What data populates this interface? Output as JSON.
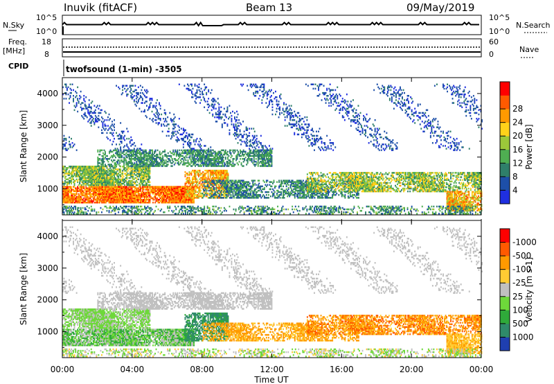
{
  "header": {
    "station": "Inuvik (fitACF)",
    "beam": "Beam 13",
    "date": "09/May/2019"
  },
  "top_panels": {
    "nsky_label": "N.Sky",
    "nsky_ticks": [
      "10^5",
      "10^0"
    ],
    "nsearch_label": "N.Search",
    "nsearch_ticks": [
      "10^5",
      "10^0"
    ],
    "freq_label": "Freq.",
    "freq_unit": "[MHz]",
    "freq_ticks": [
      "18",
      "8"
    ],
    "nave_label": "Nave",
    "nave_ticks": [
      "60",
      "0"
    ],
    "cpid_label": "CPID",
    "cpid_value": "twofsound (1-min) -3505"
  },
  "chart_data": [
    {
      "type": "heatmap",
      "quantity": "Power",
      "ylabel": "Slant Range [km]",
      "ylim": [
        180,
        4500
      ],
      "yticks": [
        1000,
        2000,
        3000,
        4000
      ],
      "xlim": [
        0,
        24
      ],
      "colorbar": {
        "label": "Power [dB]",
        "ticks": [
          "4",
          "8",
          "12",
          "16",
          "20",
          "24",
          "28"
        ],
        "colors": [
          "#1f2fe0",
          "#1d4fa8",
          "#2f7f6a",
          "#4fae52",
          "#9cc83a",
          "#ffd21a",
          "#ff9a00",
          "#ff5a00",
          "#ff0000"
        ]
      }
    },
    {
      "type": "heatmap",
      "quantity": "Velocity",
      "xlabel": "Time UT",
      "ylabel": "Slant Range [km]",
      "ylim": [
        180,
        4500
      ],
      "yticks": [
        1000,
        2000,
        3000,
        4000
      ],
      "xlim": [
        0,
        24
      ],
      "colorbar": {
        "label": "Velocity  [m s-1]",
        "ticks": [
          "1000",
          "500",
          "100",
          "25",
          "-25",
          "-100",
          "-500",
          "-1000"
        ],
        "colors": [
          "#1f3fb0",
          "#2f8a6a",
          "#2faa3a",
          "#6ed83a",
          "#c0c0c0",
          "#ffcc33",
          "#ff9a00",
          "#ff5a00",
          "#ff0000"
        ]
      }
    }
  ],
  "x_axis": {
    "ticks": [
      "00:00",
      "04:00",
      "08:00",
      "12:00",
      "16:00",
      "20:00",
      "00:00"
    ],
    "label": "Time UT"
  }
}
